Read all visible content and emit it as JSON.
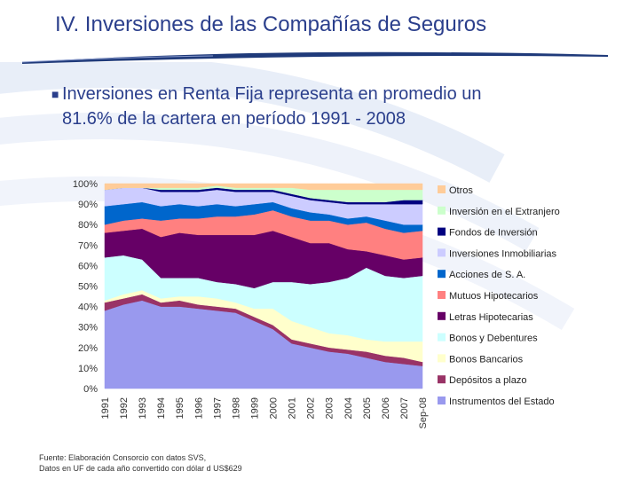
{
  "page": {
    "title": "IV. Inversiones de las Compañías de Seguros",
    "bullet_line1": "Inversiones en Renta Fija representa en promedio un",
    "bullet_line2": "81.6% de la cartera en período 1991 - 2008",
    "footer_line1": "Fuente: Elaboración Consorcio con datos SVS,",
    "footer_line2": "Datos en UF de cada año convertido con dólar d US$629"
  },
  "colors": {
    "title": "#2b3f8c",
    "swoosh": "#1f3a7a"
  },
  "chart_data": {
    "type": "area",
    "stacked": true,
    "normalized": true,
    "categories": [
      "1991",
      "1992",
      "1993",
      "1994",
      "1995",
      "1996",
      "1997",
      "1998",
      "1999",
      "2000",
      "2001",
      "2002",
      "2003",
      "2004",
      "2005",
      "2006",
      "2007",
      "Sep-08"
    ],
    "yticks": [
      "0%",
      "10%",
      "20%",
      "30%",
      "40%",
      "50%",
      "60%",
      "70%",
      "80%",
      "90%",
      "100%"
    ],
    "ylim": [
      0,
      100
    ],
    "legend_position": "right",
    "series": [
      {
        "name": "Instrumentos del Estado",
        "color": "#9999ee",
        "values": [
          38,
          41,
          43,
          40,
          40,
          39,
          38,
          37,
          33,
          29,
          22,
          20,
          18,
          17,
          15,
          13,
          12,
          11
        ]
      },
      {
        "name": "Depósitos a plazo",
        "color": "#993366",
        "values": [
          4,
          3,
          3,
          2,
          3,
          2,
          2,
          2,
          2,
          2,
          2,
          2,
          2,
          2,
          3,
          3,
          3,
          2
        ]
      },
      {
        "name": "Bonos Bancarios",
        "color": "#ffffcc",
        "values": [
          1,
          2,
          2,
          2,
          2,
          4,
          4,
          3,
          4,
          8,
          9,
          8,
          7,
          7,
          6,
          7,
          8,
          10
        ]
      },
      {
        "name": "Bonos y Debentures",
        "color": "#ccffff",
        "values": [
          21,
          19,
          15,
          10,
          9,
          9,
          8,
          9,
          10,
          13,
          19,
          21,
          25,
          28,
          35,
          32,
          31,
          32
        ]
      },
      {
        "name": "Letras Hipotecarias",
        "color": "#660066",
        "values": [
          12,
          12,
          15,
          20,
          22,
          21,
          23,
          24,
          26,
          25,
          22,
          20,
          19,
          14,
          8,
          10,
          9,
          9
        ]
      },
      {
        "name": "Mutuos Hipotecarios",
        "color": "#ff8080",
        "values": [
          4,
          5,
          5,
          8,
          7,
          8,
          9,
          9,
          10,
          10,
          10,
          11,
          11,
          12,
          14,
          13,
          13,
          13
        ]
      },
      {
        "name": "Acciones de S. A.",
        "color": "#0066cc",
        "values": [
          9,
          8,
          8,
          7,
          7,
          6,
          6,
          5,
          5,
          4,
          4,
          4,
          3,
          3,
          3,
          4,
          4,
          3
        ]
      },
      {
        "name": "Inversiones Inmobiliarias",
        "color": "#ccccff",
        "values": [
          8,
          8,
          7,
          7,
          6,
          7,
          7,
          7,
          6,
          5,
          6,
          6,
          6,
          7,
          6,
          8,
          10,
          10
        ]
      },
      {
        "name": "Fondos de Inversión",
        "color": "#000080",
        "values": [
          0,
          0,
          0,
          1,
          1,
          1,
          1,
          1,
          1,
          1,
          1,
          1,
          1,
          1,
          1,
          1,
          2,
          2
        ]
      },
      {
        "name": "Inversión en el Extranjero",
        "color": "#ccffcc",
        "values": [
          0,
          0,
          0,
          1,
          1,
          1,
          1,
          1,
          1,
          1,
          3,
          4,
          5,
          6,
          6,
          6,
          5,
          5
        ]
      },
      {
        "name": "Otros",
        "color": "#ffcc99",
        "values": [
          3,
          2,
          2,
          2,
          2,
          2,
          1,
          2,
          2,
          2,
          2,
          3,
          3,
          3,
          3,
          3,
          3,
          3
        ]
      }
    ]
  }
}
